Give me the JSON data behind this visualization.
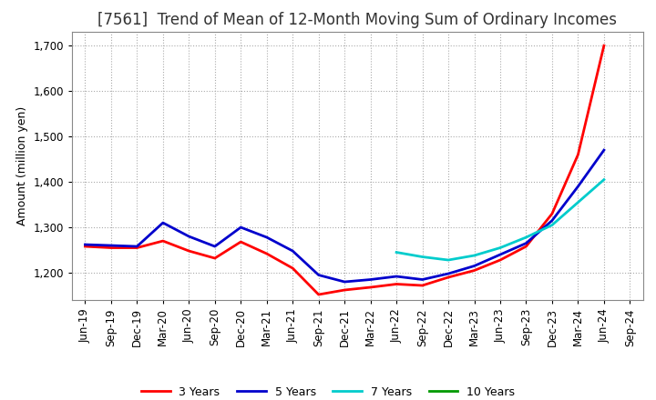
{
  "title": "[7561]  Trend of Mean of 12-Month Moving Sum of Ordinary Incomes",
  "ylabel": "Amount (million yen)",
  "ylim": [
    1140,
    1730
  ],
  "yticks": [
    1200,
    1300,
    1400,
    1500,
    1600,
    1700
  ],
  "line_colors": {
    "3 Years": "#FF0000",
    "5 Years": "#0000CC",
    "7 Years": "#00CCCC",
    "10 Years": "#009900"
  },
  "x_labels": [
    "Jun-19",
    "Sep-19",
    "Dec-19",
    "Mar-20",
    "Jun-20",
    "Sep-20",
    "Dec-20",
    "Mar-21",
    "Jun-21",
    "Sep-21",
    "Dec-21",
    "Mar-22",
    "Jun-22",
    "Sep-22",
    "Dec-22",
    "Mar-23",
    "Jun-23",
    "Sep-23",
    "Dec-23",
    "Mar-24",
    "Jun-24",
    "Sep-24"
  ],
  "series_3y": [
    1258,
    1255,
    1255,
    1270,
    1248,
    1232,
    1268,
    1242,
    1210,
    1152,
    1162,
    1168,
    1175,
    1172,
    1190,
    1205,
    1228,
    1258,
    1330,
    1460,
    1700,
    null
  ],
  "series_5y": [
    1262,
    1260,
    1258,
    1310,
    1280,
    1258,
    1300,
    1278,
    1248,
    1195,
    1180,
    1185,
    1192,
    1185,
    1198,
    1215,
    1240,
    1265,
    1315,
    1390,
    1470,
    null
  ],
  "series_7y": [
    null,
    null,
    null,
    null,
    null,
    null,
    null,
    null,
    null,
    null,
    null,
    null,
    1245,
    1235,
    1228,
    1238,
    1255,
    1278,
    1305,
    1355,
    1405,
    null
  ],
  "series_10y": [
    null,
    null,
    null,
    null,
    null,
    null,
    null,
    null,
    null,
    null,
    null,
    null,
    null,
    null,
    null,
    null,
    null,
    null,
    null,
    null,
    null,
    null
  ],
  "background_color": "#FFFFFF",
  "grid_color": "#AAAAAA",
  "title_fontsize": 12,
  "axis_fontsize": 9,
  "tick_fontsize": 8.5,
  "linewidth": 2.0
}
